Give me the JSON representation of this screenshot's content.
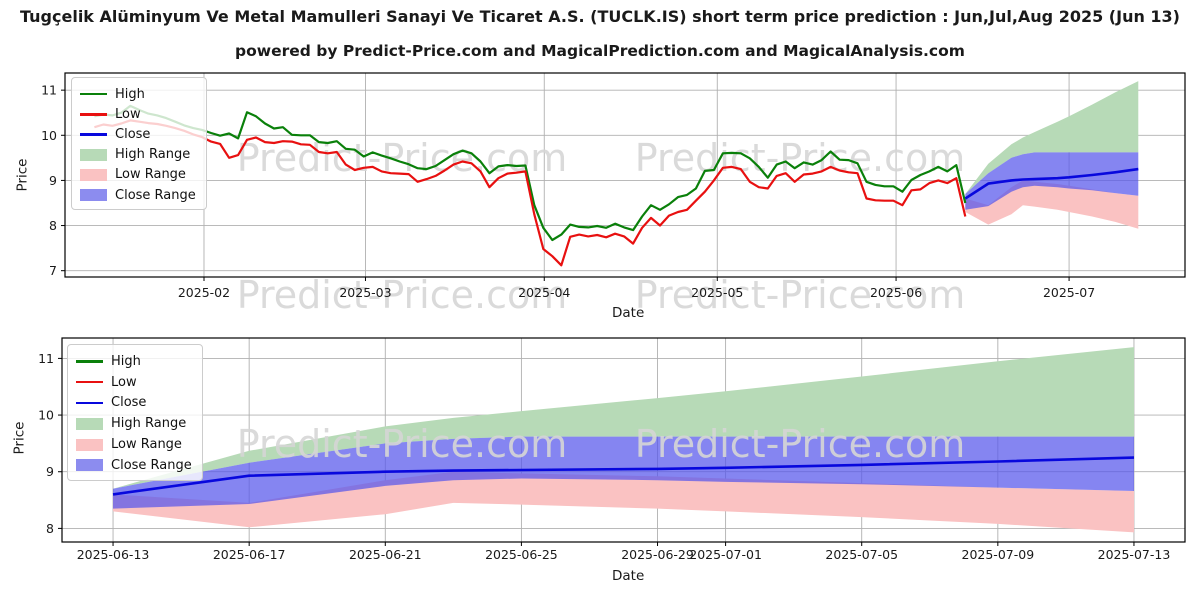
{
  "header": {
    "title": "Tugçelik Alüminyum Ve Metal Mamulleri Sanayi Ve Ticaret A.S. (TUCLK.IS) short term price prediction : Jun,Jul,Aug 2025 (Jun 13)",
    "subtitle": "powered by Predict-Price.com and MagicalPrediction.com and MagicalAnalysis.com"
  },
  "watermark": {
    "text": "Predict-Price.com",
    "color": "#d6d6d6"
  },
  "colors": {
    "high": "#0a800a",
    "low": "#e81010",
    "close": "#0808dd",
    "high_range": "#b7dab7",
    "low_range": "#fac2c2",
    "close_range_fill": "rgba(86,86,235,0.72)",
    "close_range_legend": "#8c8cef",
    "grid": "#b0b0b0",
    "frame": "#000000",
    "text": "#1a1a1a"
  },
  "legend": {
    "items": [
      {
        "label": "High",
        "swatch": "line",
        "color_key": "high"
      },
      {
        "label": "Low",
        "swatch": "line",
        "color_key": "low"
      },
      {
        "label": "Close",
        "swatch": "line",
        "color_key": "close"
      },
      {
        "label": "High Range",
        "swatch": "patch",
        "color_key": "high_range"
      },
      {
        "label": "Low Range",
        "swatch": "patch",
        "color_key": "low_range"
      },
      {
        "label": "Close Range",
        "swatch": "patch",
        "color_key": "close_range_legend"
      }
    ]
  },
  "prediction": {
    "dates": [
      "2025-06-13",
      "2025-06-17",
      "2025-06-21",
      "2025-06-23",
      "2025-06-25",
      "2025-06-29",
      "2025-07-01",
      "2025-07-05",
      "2025-07-09",
      "2025-07-13"
    ],
    "t": [
      151,
      155,
      159,
      161,
      163,
      167,
      169,
      173,
      177,
      181
    ],
    "high_upper": [
      8.7,
      9.37,
      9.8,
      9.95,
      10.07,
      10.3,
      10.42,
      10.68,
      10.95,
      11.2
    ],
    "close_upper": [
      8.7,
      9.16,
      9.5,
      9.58,
      9.62,
      9.62,
      9.62,
      9.62,
      9.62,
      9.62
    ],
    "close": [
      8.6,
      8.93,
      9.0,
      9.02,
      9.03,
      9.05,
      9.07,
      9.12,
      9.18,
      9.25
    ],
    "close_lower": [
      8.35,
      8.43,
      8.75,
      8.85,
      8.88,
      8.85,
      8.82,
      8.78,
      8.72,
      8.66
    ],
    "low_upper": [
      8.6,
      8.45,
      8.85,
      9.0,
      8.97,
      8.92,
      8.88,
      8.8,
      8.72,
      8.66
    ],
    "low_lower": [
      8.3,
      8.02,
      8.25,
      8.45,
      8.42,
      8.35,
      8.3,
      8.2,
      8.08,
      7.93
    ]
  },
  "chart_data": [
    {
      "type": "line",
      "name": "main-history-and-forecast",
      "xlabel": "Date",
      "ylabel": "Price",
      "y_ticks": [
        7,
        8,
        9,
        10,
        11
      ],
      "ylim": [
        6.86,
        11.38
      ],
      "x_ticks": [
        {
          "label": "2025-02",
          "t": 19
        },
        {
          "label": "2025-03",
          "t": 47
        },
        {
          "label": "2025-04",
          "t": 78
        },
        {
          "label": "2025-05",
          "t": 108
        },
        {
          "label": "2025-06",
          "t": 139
        },
        {
          "label": "2025-07",
          "t": 169
        }
      ],
      "xlim_t": [
        -5.1,
        189.1
      ],
      "historical": {
        "start_date": "2025-01-13",
        "end_date": "2025-06-13",
        "t_start": 0,
        "t_end": 151,
        "high": [
          10.42,
          10.46,
          10.44,
          10.5,
          10.65,
          10.56,
          10.48,
          10.44,
          10.38,
          10.3,
          10.22,
          10.16,
          10.12,
          10.05,
          9.99,
          10.04,
          9.93,
          10.51,
          10.42,
          10.26,
          10.15,
          10.18,
          10.01,
          10.0,
          10.0,
          9.85,
          9.83,
          9.87,
          9.7,
          9.68,
          9.53,
          9.62,
          9.55,
          9.49,
          9.42,
          9.36,
          9.27,
          9.25,
          9.32,
          9.45,
          9.58,
          9.66,
          9.6,
          9.42,
          9.16,
          9.31,
          9.34,
          9.32,
          9.33,
          8.45,
          7.95,
          7.68,
          7.8,
          8.02,
          7.97,
          7.96,
          7.99,
          7.95,
          8.04,
          7.96,
          7.9,
          8.2,
          8.45,
          8.35,
          8.47,
          8.63,
          8.68,
          8.82,
          9.21,
          9.23,
          9.6,
          9.61,
          9.6,
          9.49,
          9.3,
          9.06,
          9.35,
          9.42,
          9.27,
          9.4,
          9.35,
          9.45,
          9.64,
          9.46,
          9.45,
          9.38,
          8.97,
          8.9,
          8.87,
          8.87,
          8.75,
          9.01,
          9.12,
          9.2,
          9.3,
          9.2,
          9.34,
          8.5
        ],
        "low": [
          10.18,
          10.24,
          10.21,
          10.26,
          10.33,
          10.3,
          10.27,
          10.25,
          10.21,
          10.16,
          10.1,
          10.02,
          9.96,
          9.86,
          9.81,
          9.5,
          9.56,
          9.9,
          9.95,
          9.85,
          9.83,
          9.87,
          9.86,
          9.8,
          9.79,
          9.63,
          9.6,
          9.63,
          9.35,
          9.23,
          9.28,
          9.3,
          9.2,
          9.16,
          9.15,
          9.14,
          8.97,
          9.03,
          9.1,
          9.22,
          9.35,
          9.42,
          9.38,
          9.2,
          8.85,
          9.05,
          9.15,
          9.17,
          9.2,
          8.25,
          7.48,
          7.32,
          7.12,
          7.75,
          7.8,
          7.76,
          7.79,
          7.74,
          7.82,
          7.76,
          7.6,
          7.95,
          8.17,
          8.0,
          8.22,
          8.3,
          8.35,
          8.55,
          8.75,
          9.0,
          9.28,
          9.3,
          9.25,
          8.97,
          8.85,
          8.82,
          9.1,
          9.16,
          8.97,
          9.13,
          9.15,
          9.2,
          9.3,
          9.22,
          9.18,
          9.16,
          8.6,
          8.56,
          8.55,
          8.55,
          8.45,
          8.78,
          8.8,
          8.94,
          9.0,
          8.94,
          9.05,
          8.2
        ]
      },
      "uses_prediction": true
    },
    {
      "type": "area",
      "name": "forecast-detail",
      "xlabel": "Date",
      "ylabel": "Price",
      "y_ticks": [
        8,
        9,
        10,
        11
      ],
      "ylim": [
        7.76,
        11.36
      ],
      "x_ticks": [
        {
          "label": "2025-06-13",
          "t": 151
        },
        {
          "label": "2025-06-17",
          "t": 155
        },
        {
          "label": "2025-06-21",
          "t": 159
        },
        {
          "label": "2025-06-25",
          "t": 163
        },
        {
          "label": "2025-06-29",
          "t": 167
        },
        {
          "label": "2025-07-01",
          "t": 169
        },
        {
          "label": "2025-07-05",
          "t": 173
        },
        {
          "label": "2025-07-09",
          "t": 177
        },
        {
          "label": "2025-07-13",
          "t": 181
        }
      ],
      "xlim_t": [
        149.5,
        182.5
      ],
      "uses_prediction": true
    }
  ]
}
